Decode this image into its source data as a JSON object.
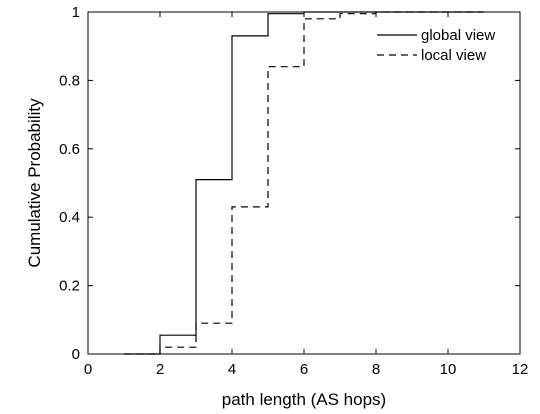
{
  "chart_data": {
    "type": "line",
    "step": true,
    "title": "",
    "xlabel": "path length (AS hops)",
    "ylabel": "Cumulative Probability",
    "xlim": [
      0,
      12
    ],
    "ylim": [
      0,
      1
    ],
    "xticks": [
      0,
      2,
      4,
      6,
      8,
      10,
      12
    ],
    "yticks": [
      0,
      0.2,
      0.4,
      0.6,
      0.8,
      1
    ],
    "xtick_labels": [
      "0",
      "2",
      "4",
      "6",
      "8",
      "10",
      "12"
    ],
    "ytick_labels": [
      "0",
      "0.2",
      "0.4",
      "0.6",
      "0.8",
      "1"
    ],
    "grid": false,
    "legend_position": "top-right",
    "series": [
      {
        "name": "global view",
        "style": "solid",
        "color": "#000000",
        "x": [
          1,
          2,
          3,
          4,
          5,
          6,
          7,
          8,
          9,
          10,
          11
        ],
        "y": [
          0,
          0.055,
          0.51,
          0.93,
          0.995,
          1,
          1,
          1,
          1,
          1,
          1
        ]
      },
      {
        "name": "local view",
        "style": "dashed",
        "color": "#000000",
        "x": [
          1,
          2,
          3,
          4,
          5,
          6,
          7,
          8,
          9,
          10,
          11
        ],
        "y": [
          0,
          0.02,
          0.09,
          0.43,
          0.84,
          0.98,
          0.995,
          1,
          1,
          1,
          1
        ]
      }
    ]
  }
}
